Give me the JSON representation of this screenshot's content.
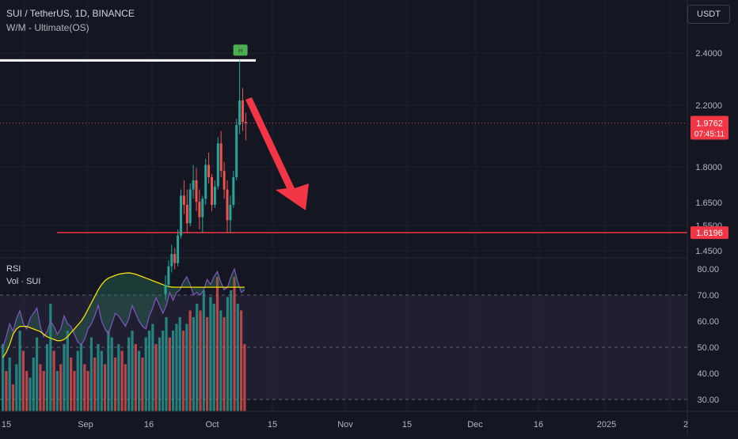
{
  "header": {
    "title": "SUI / TetherUS, 1D, BINANCE",
    "indicator": "W/M - Ultimate(OS)",
    "currency": "USDT"
  },
  "colors": {
    "background": "#141722",
    "up": "#26a69a",
    "down": "#ef5350",
    "accent_red": "#f23645",
    "line_white": "#ffffff",
    "rsi_line": "#7e57c2",
    "rsi_ma": "#f7e000",
    "rsi_band": "#2a2640",
    "marker": "#4caf50"
  },
  "chart_data": [
    {
      "type": "candlestick",
      "title": "SUI / TetherUS, 1D, BINANCE",
      "x_ticks": [
        "15",
        "Sep",
        "16",
        "Oct",
        "15",
        "Nov",
        "15",
        "Dec",
        "16",
        "2025",
        "2"
      ],
      "y_ticks": [
        "2.4000",
        "2.2000",
        "2.0000",
        "1.8000",
        "1.6500",
        "1.5500",
        "1.4500"
      ],
      "candles": [
        [
          1.42,
          1.48,
          1.4,
          1.45
        ],
        [
          1.45,
          1.53,
          1.44,
          1.51
        ],
        [
          1.51,
          1.58,
          1.49,
          1.55
        ],
        [
          1.55,
          1.57,
          1.5,
          1.52
        ],
        [
          1.52,
          1.63,
          1.51,
          1.61
        ],
        [
          1.61,
          1.76,
          1.6,
          1.74
        ],
        [
          1.74,
          1.79,
          1.68,
          1.71
        ],
        [
          1.71,
          1.76,
          1.62,
          1.65
        ],
        [
          1.65,
          1.78,
          1.64,
          1.76
        ],
        [
          1.76,
          1.84,
          1.73,
          1.79
        ],
        [
          1.79,
          1.83,
          1.69,
          1.72
        ],
        [
          1.72,
          1.76,
          1.63,
          1.67
        ],
        [
          1.67,
          1.74,
          1.62,
          1.73
        ],
        [
          1.73,
          1.86,
          1.71,
          1.84
        ],
        [
          1.84,
          1.88,
          1.78,
          1.8
        ],
        [
          1.8,
          1.81,
          1.69,
          1.71
        ],
        [
          1.71,
          1.79,
          1.7,
          1.77
        ],
        [
          1.77,
          1.93,
          1.76,
          1.91
        ],
        [
          1.91,
          1.95,
          1.8,
          1.82
        ],
        [
          1.82,
          1.85,
          1.73,
          1.76
        ],
        [
          1.76,
          1.79,
          1.62,
          1.66
        ],
        [
          1.66,
          1.74,
          1.62,
          1.71
        ],
        [
          1.71,
          1.82,
          1.7,
          1.8
        ],
        [
          1.8,
          1.99,
          1.79,
          1.97
        ],
        [
          1.97,
          2.18,
          1.94,
          2.05
        ],
        [
          2.05,
          2.09,
          1.95,
          1.98
        ],
        [
          1.98,
          2.01,
          1.92,
          1.976
        ]
      ],
      "last_price": "1.9762",
      "countdown": "07:45:11",
      "level_price": "1.6196",
      "resistance": 2.18,
      "marker_label": "H"
    },
    {
      "type": "line",
      "title": "RSI",
      "y_ticks": [
        "80.00",
        "70.00",
        "60.00",
        "50.00",
        "40.00",
        "30.00"
      ],
      "ylim": [
        26,
        84
      ],
      "bands": [
        70,
        50,
        30
      ],
      "rsi": [
        50,
        54,
        59,
        56,
        61,
        64,
        59,
        57,
        61,
        63,
        65,
        58,
        54,
        56,
        60,
        58,
        55,
        57,
        62,
        59,
        58,
        55,
        52,
        51,
        53,
        57,
        59,
        62,
        66,
        60,
        57,
        55,
        59,
        63,
        62,
        60,
        58,
        61,
        66,
        63,
        60,
        58,
        57,
        62,
        65,
        69,
        66,
        63,
        66,
        71,
        68,
        71,
        72,
        75,
        77,
        74,
        70,
        71,
        70,
        72,
        76,
        74,
        77,
        79,
        75,
        72,
        73,
        77,
        80,
        75,
        71,
        72
      ],
      "rsi_ma": [
        46,
        48,
        51,
        55,
        57,
        58,
        58,
        58,
        57.5,
        57,
        56.5,
        56,
        55,
        54,
        53.5,
        53,
        52.5,
        52.5,
        53,
        54,
        55.5,
        57,
        58.5,
        60,
        62,
        64.5,
        67,
        69.5,
        72,
        74,
        75.5,
        76.5,
        77,
        77.5,
        78,
        78.2,
        78.4,
        78.5,
        78.3,
        78,
        77.5,
        77,
        76.5,
        76,
        75.5,
        75,
        74.5,
        74,
        73.5,
        73.2,
        73,
        73,
        73,
        73,
        73,
        73,
        73,
        73,
        73,
        73,
        73,
        73,
        73,
        73,
        73,
        73,
        73,
        73,
        73,
        73,
        73,
        73
      ],
      "volume": [
        0.5,
        0.3,
        0.4,
        0.2,
        0.35,
        0.6,
        0.45,
        0.3,
        0.25,
        0.4,
        0.55,
        0.35,
        0.3,
        0.5,
        0.8,
        0.45,
        0.3,
        0.35,
        0.5,
        0.6,
        0.4,
        0.3,
        0.45,
        0.5,
        0.35,
        0.3,
        0.55,
        0.4,
        0.5,
        0.45,
        0.35,
        0.6,
        0.55,
        0.4,
        0.5,
        0.45,
        0.35,
        0.55,
        0.6,
        0.5,
        0.45,
        0.4,
        0.55,
        0.6,
        0.65,
        0.5,
        0.55,
        0.6,
        0.7,
        0.55,
        0.6,
        0.65,
        0.7,
        0.6,
        0.65,
        0.75,
        0.7,
        0.8,
        0.75,
        0.9,
        0.7,
        0.85,
        0.8,
        1.0,
        0.75,
        0.7,
        0.85,
        0.9,
        1.0,
        0.8,
        0.75,
        0.5
      ],
      "volume_up": [
        1,
        0,
        1,
        0,
        1,
        1,
        0,
        0,
        1,
        1,
        1,
        0,
        0,
        1,
        1,
        0,
        1,
        0,
        1,
        1,
        0,
        0,
        1,
        1,
        0,
        0,
        1,
        0,
        1,
        1,
        0,
        1,
        1,
        0,
        1,
        0,
        0,
        1,
        1,
        0,
        1,
        0,
        1,
        1,
        1,
        0,
        1,
        1,
        1,
        0,
        1,
        1,
        1,
        0,
        1,
        0,
        1,
        1,
        0,
        1,
        0,
        1,
        1,
        0,
        1,
        0,
        1,
        1,
        0,
        1,
        0,
        0
      ]
    }
  ],
  "panes": {
    "rsi_label": "RSI",
    "volume_label": "Vol · SUI"
  }
}
